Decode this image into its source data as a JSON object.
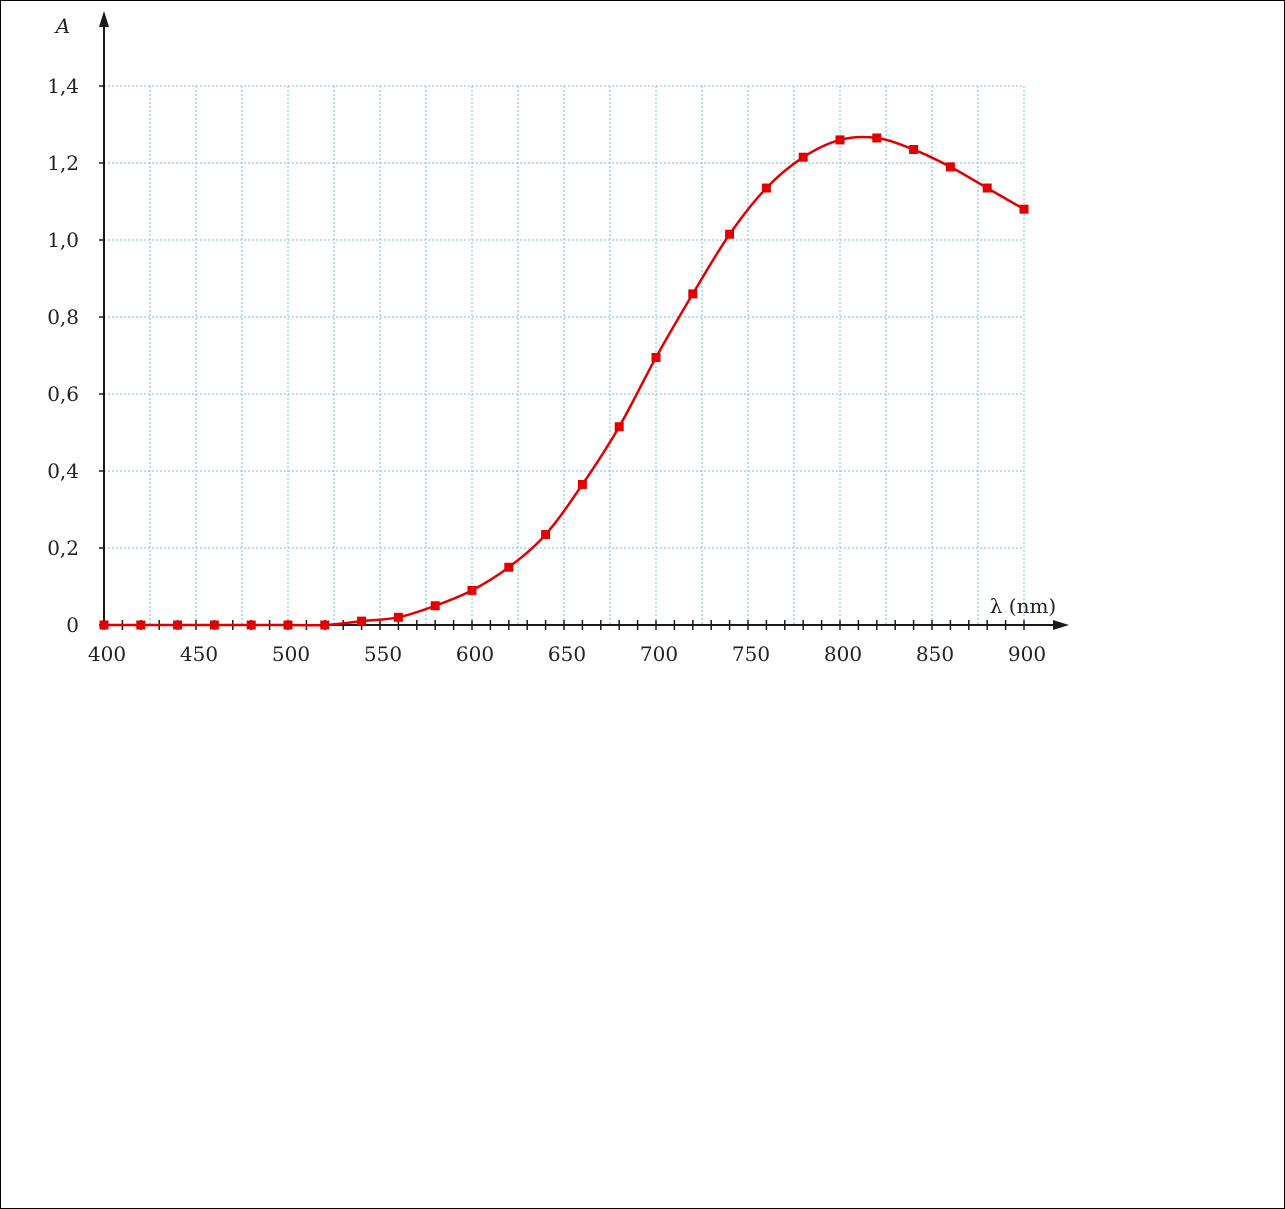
{
  "chart_data": {
    "type": "line",
    "title": "",
    "xlabel": "λ (nm)",
    "ylabel": "A",
    "xlim": [
      400,
      900
    ],
    "ylim": [
      0,
      1.4
    ],
    "grid": true,
    "x_ticks": [
      400,
      450,
      500,
      550,
      600,
      650,
      700,
      750,
      800,
      850,
      900
    ],
    "x_tick_labels": [
      "400",
      "450",
      "500",
      "550",
      "600",
      "650",
      "700",
      "750",
      "800",
      "850",
      "900"
    ],
    "y_ticks": [
      0,
      0.2,
      0.4,
      0.6,
      0.8,
      1.0,
      1.2,
      1.4
    ],
    "y_tick_labels": [
      "0",
      "0,2",
      "0,4",
      "0,6",
      "0,8",
      "1,0",
      "1,2",
      "1,4"
    ],
    "series": [
      {
        "x": [
          400,
          420,
          440,
          460,
          480,
          500,
          520,
          540,
          560,
          580,
          600,
          620,
          640,
          660,
          680,
          700,
          720,
          740,
          760,
          780,
          800,
          820,
          840,
          860,
          880,
          900
        ],
        "y": [
          0,
          0,
          0,
          0,
          0,
          0,
          0,
          0.01,
          0.02,
          0.05,
          0.09,
          0.15,
          0.235,
          0.365,
          0.515,
          0.695,
          0.86,
          1.015,
          1.135,
          1.215,
          1.26,
          1.265,
          1.235,
          1.19,
          1.135,
          1.08
        ],
        "color": "#e00000",
        "marker": "square"
      }
    ],
    "colors": {
      "series": "#e00000",
      "grid": "#9fd4ee",
      "axis": "#1a1a1a"
    }
  }
}
